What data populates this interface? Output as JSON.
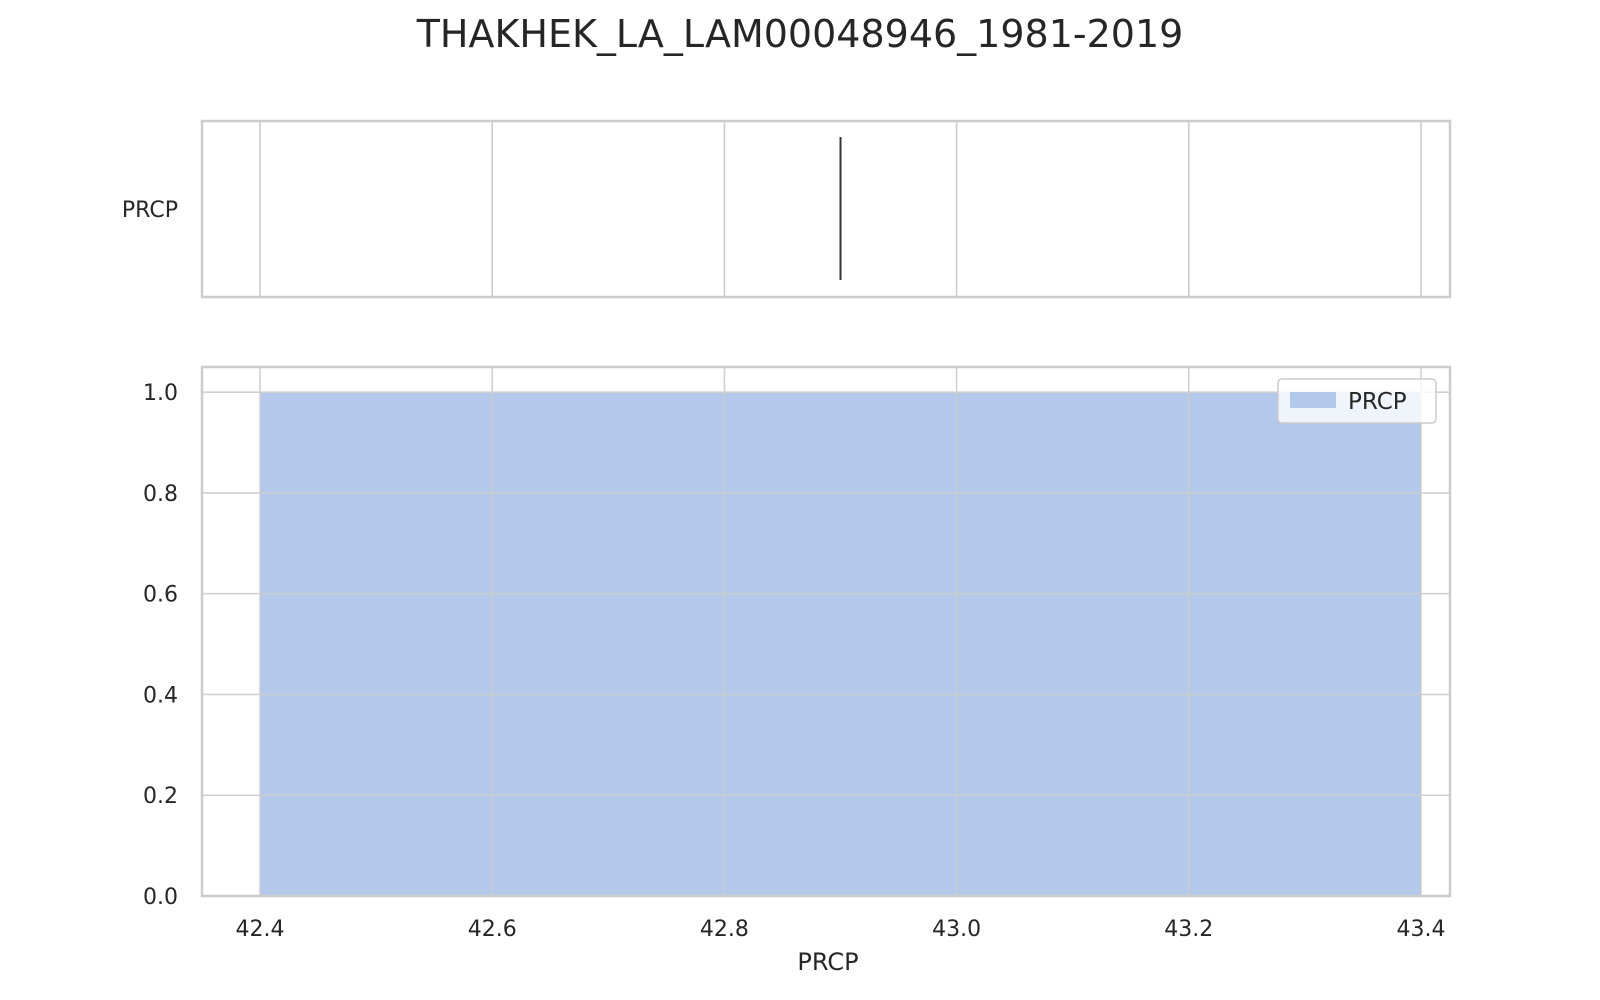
{
  "chart_data": {
    "title": "THAKHEK_LA_LAM00048946_1981-2019",
    "colors": {
      "fill": "#b4c8eb",
      "grid": "#cccccc",
      "frame": "#cccccc",
      "median_line": "#333333",
      "text": "#262626"
    },
    "boxplot": {
      "type": "box",
      "category_label": "PRCP",
      "median": 42.9,
      "xlim": [
        42.35,
        43.425
      ]
    },
    "histogram": {
      "type": "area",
      "xlabel": "PRCP",
      "ylabel": "",
      "xlim": [
        42.35,
        43.425
      ],
      "ylim": [
        0,
        1.05
      ],
      "x_ticks": [
        42.4,
        42.6,
        42.8,
        43.0,
        43.2,
        43.4
      ],
      "x_tick_labels": [
        "42.4",
        "42.6",
        "42.8",
        "43.0",
        "43.2",
        "43.4"
      ],
      "y_ticks": [
        0.0,
        0.2,
        0.4,
        0.6,
        0.8,
        1.0
      ],
      "y_tick_labels": [
        "0.0",
        "0.2",
        "0.4",
        "0.6",
        "0.8",
        "1.0"
      ],
      "grid": true,
      "legend": {
        "position": "top-right",
        "entries": [
          "PRCP"
        ]
      },
      "series": [
        {
          "name": "PRCP",
          "x": [
            42.4,
            43.4
          ],
          "y": [
            1.0,
            1.0
          ]
        }
      ]
    }
  }
}
